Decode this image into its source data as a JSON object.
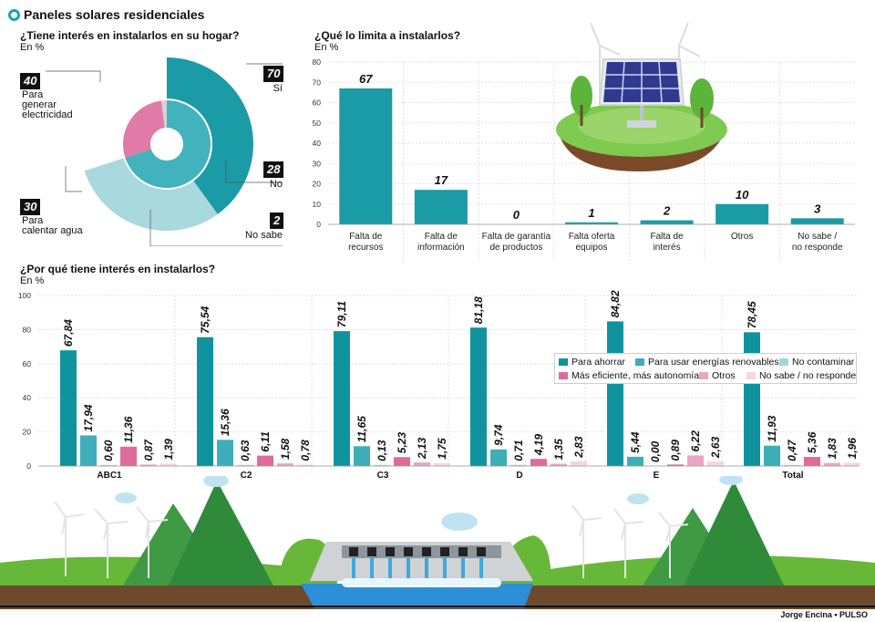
{
  "title": "Paneles solares residenciales",
  "credit": "Jorge Encina • PULSO",
  "donut": {
    "question": "¿Tiene interés en instalarlos en su hogar?",
    "unit": "En %",
    "outer": [
      {
        "value": "70",
        "label": "Sí",
        "color": "#42b2bd"
      },
      {
        "value": "28",
        "label": "No",
        "color": "#e07aa6"
      },
      {
        "value": "2",
        "label": "No sabe",
        "color": "#d3d3d3"
      }
    ],
    "inner": [
      {
        "value": "40",
        "label": "Para generar electricidad",
        "color": "#1a9ba5"
      },
      {
        "value": "30",
        "label": "Para calentar agua",
        "color": "#a9d8dd"
      }
    ],
    "label_lines": {
      "generar": [
        "Para",
        "generar",
        "electricidad"
      ],
      "calentar": [
        "Para",
        "calentar agua"
      ]
    }
  },
  "chart_data": [
    {
      "type": "bar",
      "title": "¿Qué lo limita a instalarlos?",
      "ylabel": "En %",
      "ylim": [
        0,
        80
      ],
      "yticks": [
        0,
        10,
        20,
        30,
        40,
        50,
        60,
        70,
        80
      ],
      "grid": true,
      "color": "#1a9ba5",
      "categories": [
        [
          "Falta de",
          "recursos"
        ],
        [
          "Falta de",
          "información"
        ],
        [
          "Falta de garantía",
          "de productos"
        ],
        [
          "Falta oferta",
          "equipos"
        ],
        [
          "Falta de",
          "interés"
        ],
        [
          "Otros"
        ],
        [
          "No sabe /",
          "no responde"
        ]
      ],
      "values": [
        67,
        17,
        0,
        1,
        2,
        10,
        3
      ],
      "value_labels": [
        "67",
        "17",
        "0",
        "1",
        "2",
        "10",
        "3"
      ]
    },
    {
      "type": "bar",
      "title": "¿Por qué tiene interés en instalarlos?",
      "ylabel": "En %",
      "ylim": [
        0,
        100
      ],
      "yticks": [
        0,
        20,
        40,
        60,
        80,
        100
      ],
      "grid": true,
      "legend_position": "right",
      "categories": [
        "ABC1",
        "C2",
        "C3",
        "D",
        "E",
        "Total"
      ],
      "series": [
        {
          "name": "Para ahorrar",
          "color": "#10939e",
          "values": [
            67.84,
            75.54,
            79.11,
            81.18,
            84.82,
            78.45
          ],
          "labels": [
            "67,84",
            "75,54",
            "79,11",
            "81,18",
            "84,82",
            "78,45"
          ]
        },
        {
          "name": "Para usar energías renovables",
          "color": "#3eaebb",
          "values": [
            17.94,
            15.36,
            11.65,
            9.74,
            5.44,
            11.93
          ],
          "labels": [
            "17,94",
            "15,36",
            "11,65",
            "9,74",
            "5,44",
            "11,93"
          ]
        },
        {
          "name": "No contaminar",
          "color": "#a3d6dc",
          "values": [
            0.6,
            0.63,
            0.13,
            0.71,
            0.0,
            0.47
          ],
          "labels": [
            "0,60",
            "0,63",
            "0,13",
            "0,71",
            "0,00",
            "0,47"
          ]
        },
        {
          "name": "Más eficiente, más autonomía",
          "color": "#de6c9b",
          "values": [
            11.36,
            6.11,
            5.23,
            4.19,
            0.89,
            5.36
          ],
          "labels": [
            "11,36",
            "6,11",
            "5,23",
            "4,19",
            "0,89",
            "5,36"
          ]
        },
        {
          "name": "Otros",
          "color": "#eba6c4",
          "values": [
            0.87,
            1.58,
            2.13,
            1.35,
            6.22,
            1.83
          ],
          "labels": [
            "0,87",
            "1,58",
            "2,13",
            "1,35",
            "6,22",
            "1,83"
          ]
        },
        {
          "name": "No sabe / no responde",
          "color": "#f7d3e2",
          "values": [
            1.39,
            0.78,
            1.75,
            2.83,
            2.63,
            1.96
          ],
          "labels": [
            "1,39",
            "0,78",
            "1,75",
            "2,83",
            "2,63",
            "1,96"
          ]
        }
      ]
    }
  ]
}
